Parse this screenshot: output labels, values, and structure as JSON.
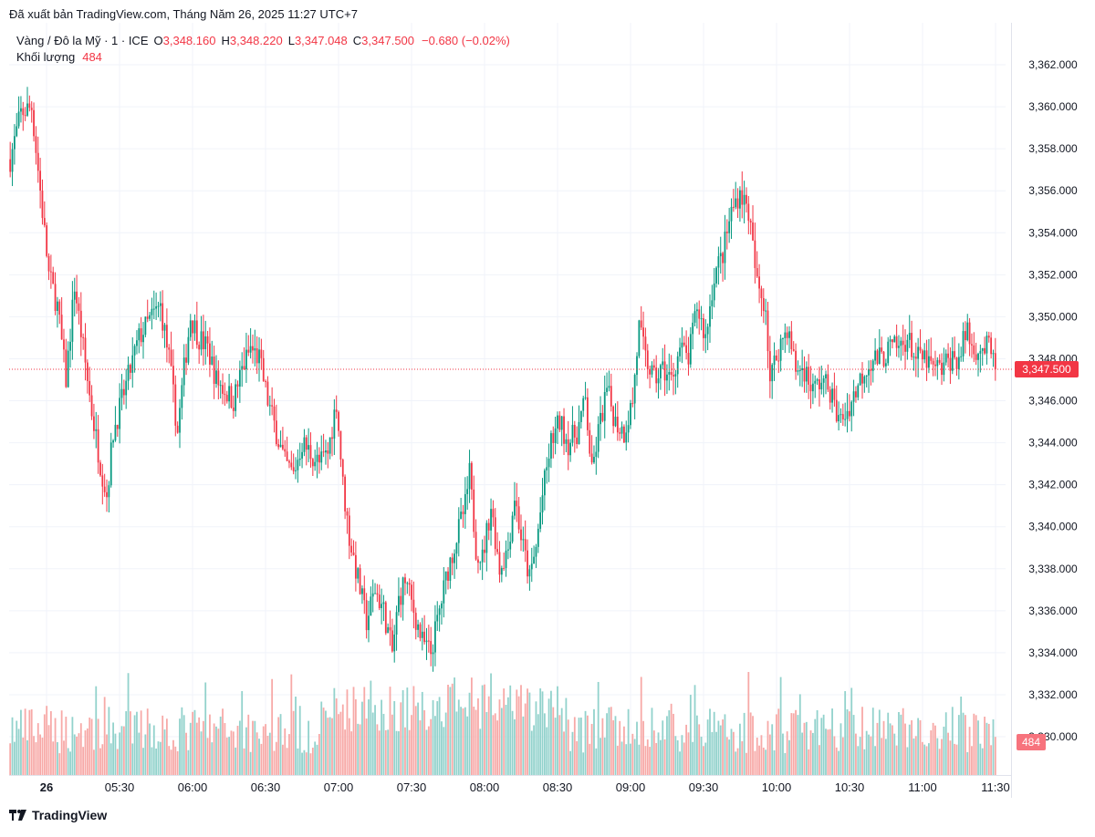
{
  "header": {
    "published": "Đã xuất bản TradingView.com, Tháng Năm 26, 2025 11:27 UTC+7"
  },
  "legend": {
    "symbol": "Vàng / Đô la Mỹ · 1 · ICE",
    "o_label": "O",
    "o_value": "3,348.160",
    "h_label": "H",
    "h_value": "3,348.220",
    "l_label": "L",
    "l_value": "3,347.048",
    "c_label": "C",
    "c_value": "3,347.500",
    "change": "−0.680 (−0.02%)",
    "volume_label": "Khối lượng",
    "volume_value": "484"
  },
  "price_axis": {
    "ticks": [
      "3,362.000",
      "3,360.000",
      "3,358.000",
      "3,356.000",
      "3,354.000",
      "3,352.000",
      "3,350.000",
      "3,348.000",
      "3,346.000",
      "3,344.000",
      "3,342.000",
      "3,340.000",
      "3,338.000",
      "3,336.000",
      "3,334.000",
      "3,332.000",
      "3,330.000"
    ],
    "last_price_label": "3,347.500",
    "last_volume_label": "484"
  },
  "time_axis": {
    "ticks": [
      "26",
      "05:30",
      "06:00",
      "06:30",
      "07:00",
      "07:30",
      "08:00",
      "08:30",
      "09:00",
      "09:30",
      "10:00",
      "10:30",
      "11:00",
      "11:30"
    ]
  },
  "brand": {
    "name": "TradingView"
  },
  "colors": {
    "up": "#089981",
    "down": "#f23645",
    "vol_up": "#92d2cc",
    "vol_down": "#f7a9a7",
    "grid": "#f0f3fa",
    "text": "#131722"
  },
  "chart_data": {
    "type": "candlestick",
    "interval_minutes": 1,
    "start_time": "05:08",
    "ylim": [
      3329,
      3363
    ],
    "anchors": [
      [
        0,
        3357.5
      ],
      [
        5,
        3359.7
      ],
      [
        10,
        3360.0
      ],
      [
        14,
        3356.0
      ],
      [
        18,
        3352.0
      ],
      [
        22,
        3350.5
      ],
      [
        26,
        3347.0
      ],
      [
        30,
        3351.5
      ],
      [
        34,
        3348.5
      ],
      [
        38,
        3345.5
      ],
      [
        42,
        3343.0
      ],
      [
        45,
        3341.5
      ],
      [
        48,
        3344.5
      ],
      [
        52,
        3346.0
      ],
      [
        56,
        3347.5
      ],
      [
        60,
        3349.0
      ],
      [
        66,
        3350.0
      ],
      [
        70,
        3350.5
      ],
      [
        74,
        3348.0
      ],
      [
        78,
        3344.5
      ],
      [
        81,
        3347.5
      ],
      [
        84,
        3350.0
      ],
      [
        88,
        3349.0
      ],
      [
        92,
        3348.5
      ],
      [
        96,
        3347.0
      ],
      [
        100,
        3346.5
      ],
      [
        104,
        3346.0
      ],
      [
        108,
        3347.5
      ],
      [
        112,
        3348.5
      ],
      [
        116,
        3348.0
      ],
      [
        120,
        3346.0
      ],
      [
        124,
        3344.5
      ],
      [
        128,
        3343.0
      ],
      [
        132,
        3342.5
      ],
      [
        136,
        3344.0
      ],
      [
        140,
        3343.5
      ],
      [
        144,
        3343.0
      ],
      [
        148,
        3343.5
      ],
      [
        152,
        3346.0
      ],
      [
        155,
        3342.0
      ],
      [
        158,
        3339.5
      ],
      [
        162,
        3337.5
      ],
      [
        166,
        3335.5
      ],
      [
        170,
        3337.0
      ],
      [
        174,
        3336.0
      ],
      [
        178,
        3334.0
      ],
      [
        181,
        3336.5
      ],
      [
        184,
        3337.5
      ],
      [
        188,
        3336.0
      ],
      [
        192,
        3334.5
      ],
      [
        196,
        3334.0
      ],
      [
        200,
        3336.0
      ],
      [
        204,
        3338.0
      ],
      [
        208,
        3339.5
      ],
      [
        212,
        3341.0
      ],
      [
        214,
        3342.5
      ],
      [
        217,
        3339.0
      ],
      [
        220,
        3338.5
      ],
      [
        224,
        3341.0
      ],
      [
        228,
        3338.0
      ],
      [
        232,
        3339.0
      ],
      [
        235,
        3341.5
      ],
      [
        238,
        3339.5
      ],
      [
        242,
        3337.5
      ],
      [
        245,
        3339.0
      ],
      [
        248,
        3341.5
      ],
      [
        252,
        3344.0
      ],
      [
        256,
        3345.0
      ],
      [
        260,
        3344.0
      ],
      [
        264,
        3344.5
      ],
      [
        268,
        3346.0
      ],
      [
        271,
        3342.5
      ],
      [
        274,
        3344.5
      ],
      [
        278,
        3346.5
      ],
      [
        282,
        3345.0
      ],
      [
        286,
        3344.5
      ],
      [
        290,
        3346.0
      ],
      [
        293,
        3349.5
      ],
      [
        296,
        3348.0
      ],
      [
        300,
        3347.0
      ],
      [
        304,
        3347.5
      ],
      [
        308,
        3347.0
      ],
      [
        312,
        3348.5
      ],
      [
        316,
        3348.0
      ],
      [
        320,
        3350.5
      ],
      [
        324,
        3349.0
      ],
      [
        328,
        3352.0
      ],
      [
        332,
        3353.0
      ],
      [
        336,
        3355.0
      ],
      [
        340,
        3356.0
      ],
      [
        344,
        3355.0
      ],
      [
        348,
        3351.5
      ],
      [
        352,
        3350.5
      ],
      [
        354,
        3347.0
      ],
      [
        358,
        3348.5
      ],
      [
        362,
        3349.5
      ],
      [
        366,
        3347.5
      ],
      [
        370,
        3347.5
      ],
      [
        374,
        3346.5
      ],
      [
        378,
        3347.0
      ],
      [
        382,
        3346.5
      ],
      [
        386,
        3345.0
      ],
      [
        390,
        3345.5
      ],
      [
        394,
        3346.5
      ],
      [
        398,
        3347.5
      ],
      [
        402,
        3348.0
      ],
      [
        406,
        3348.0
      ],
      [
        410,
        3348.5
      ],
      [
        414,
        3348.5
      ],
      [
        418,
        3349.0
      ],
      [
        422,
        3348.0
      ],
      [
        426,
        3348.0
      ],
      [
        430,
        3347.5
      ],
      [
        434,
        3347.5
      ],
      [
        438,
        3348.0
      ],
      [
        442,
        3348.0
      ],
      [
        446,
        3349.5
      ],
      [
        448,
        3348.5
      ],
      [
        452,
        3348.5
      ],
      [
        456,
        3348.5
      ],
      [
        459,
        3347.5
      ]
    ],
    "last_close": 3347.5
  }
}
